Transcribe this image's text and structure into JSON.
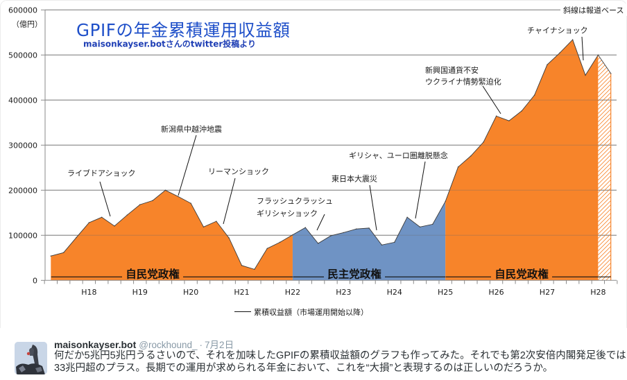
{
  "chart_data": {
    "type": "area",
    "title": "GPIFの年金累積運用収益額",
    "subtitle": "maisonkayser.botさんのtwitter投稿より",
    "xlabel": "",
    "ylabel": "（億円）",
    "ylim": [
      0,
      600000
    ],
    "yticks": [
      0,
      100000,
      200000,
      300000,
      400000,
      500000,
      600000
    ],
    "ytick_labels": [
      "0",
      "100000",
      "200000",
      "300000",
      "400000",
      "500000",
      "600000"
    ],
    "grid": true,
    "x": [
      "",
      "",
      "",
      "H18",
      "",
      "",
      "",
      "H19",
      "",
      "",
      "",
      "H20",
      "",
      "",
      "",
      "H21",
      "",
      "",
      "",
      "H22",
      "",
      "",
      "",
      "H23",
      "",
      "",
      "",
      "H24",
      "",
      "",
      "",
      "H25",
      "",
      "",
      "",
      "H26",
      "",
      "",
      "",
      "H27",
      "",
      "",
      "",
      "H28",
      ""
    ],
    "series": [
      {
        "name": "累積収益額（市場運用開始以降）",
        "values": [
          54000,
          61500,
          95000,
          128000,
          140000,
          120500,
          145000,
          168000,
          177000,
          200000,
          186000,
          171000,
          118500,
          131000,
          94000,
          33000,
          24500,
          70700,
          84500,
          101000,
          117000,
          82000,
          99000,
          106000,
          114000,
          116000,
          78500,
          84500,
          140000,
          118500,
          124500,
          175000,
          251500,
          276000,
          307000,
          364500,
          354000,
          376000,
          411000,
          478500,
          505000,
          534000,
          455000,
          500000,
          459000
        ]
      }
    ],
    "segments": [
      {
        "name": "自民党政権",
        "from": 0,
        "to": 19,
        "fill": "ldp"
      },
      {
        "name": "民主党政権",
        "from": 19,
        "to": 31,
        "fill": "dpj"
      },
      {
        "name": "自民党政権",
        "from": 31,
        "to": 43,
        "fill": "ldp"
      },
      {
        "name": "報道ベース",
        "from": 43,
        "to": 44,
        "fill": "hatched"
      }
    ],
    "periods": [
      {
        "label": "自民党政権",
        "from": 0,
        "to": 19
      },
      {
        "label": "民主党政権",
        "from": 19,
        "to": 31
      },
      {
        "label": "自民党政権",
        "from": 31,
        "to": 44
      }
    ],
    "annotations": [
      {
        "lines": [
          "ライブドアショック"
        ]
      },
      {
        "lines": [
          "新潟県中越沖地震"
        ]
      },
      {
        "lines": [
          "リーマンショック"
        ]
      },
      {
        "lines": [
          "フラッシュクラッシュ",
          "ギリシャショック"
        ]
      },
      {
        "lines": [
          "東日本大震災"
        ]
      },
      {
        "lines": [
          "ギリシャ、ユーロ圏離脱懸念"
        ]
      },
      {
        "lines": [
          "新興国通貨不安",
          "ウクライナ情勢緊迫化"
        ]
      },
      {
        "lines": [
          "チャイナショック"
        ]
      }
    ],
    "hatch_note": "斜線は報道ベース",
    "legend": {
      "label": "累積収益額（市場運用開始以降）",
      "position": "bottom"
    },
    "colors": {
      "ldp": "#f7842a",
      "dpj": "#6f93c4",
      "outline": "#3a3a3a",
      "title": "#1e4fc9",
      "subtitle": "#1f3fb5"
    }
  },
  "tweet": {
    "author_name": "maisonkayser.bot",
    "handle": "@rockhound_",
    "separator": "·",
    "date": "7月2日",
    "text_lines": [
      "何だか5兆円5兆円うるさいので、それを加味したGPIFの累積収益額のグラフも作ってみた。それでも第2次安倍内閣発足後では",
      "33兆円超のプラス。長期での運用が求められる年金において、これを“大損”と表現するのは正しいのだろうか。"
    ]
  }
}
